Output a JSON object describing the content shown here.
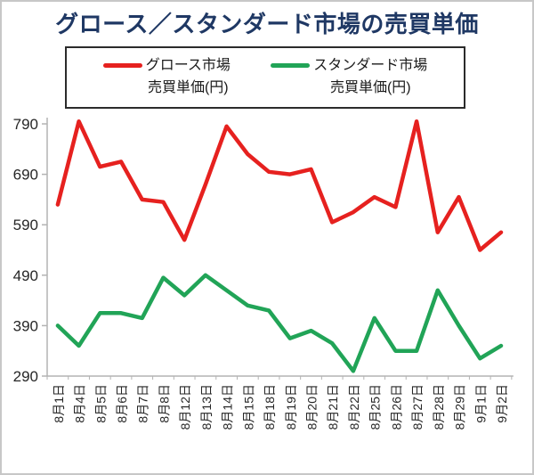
{
  "title": "グロース／スタンダード市場の売買単価",
  "legend": {
    "items": [
      {
        "line1": "グロース市場",
        "line2": "売買単価(円)",
        "color": "#e6211f"
      },
      {
        "line1": "スタンダード市場",
        "line2": "売買単価(円)",
        "color": "#21a457"
      }
    ]
  },
  "colors": {
    "title_navy": "#1f3864",
    "growth_red": "#e6211f",
    "standard_green": "#21a457",
    "axis_gray": "#b3b3b3",
    "label_text": "#262626",
    "frame_border": "#c7c7c7"
  },
  "chart_data": {
    "type": "line",
    "title": "グロース／スタンダード市場の売買単価",
    "categories": [
      "8月1日",
      "8月4日",
      "8月5日",
      "8月6日",
      "8月7日",
      "8月8日",
      "8月12日",
      "8月13日",
      "8月14日",
      "8月15日",
      "8月18日",
      "8月19日",
      "8月20日",
      "8月21日",
      "8月22日",
      "8月25日",
      "8月26日",
      "8月27日",
      "8月28日",
      "8月29日",
      "9月1日",
      "9月2日"
    ],
    "series": [
      {
        "name": "グロース市場 売買単価(円)",
        "color": "#e6211f",
        "values": [
          630,
          795,
          705,
          715,
          640,
          635,
          560,
          670,
          785,
          730,
          695,
          690,
          700,
          595,
          615,
          645,
          625,
          795,
          575,
          645,
          540,
          575
        ]
      },
      {
        "name": "スタンダード市場 売買単価(円)",
        "color": "#21a457",
        "values": [
          390,
          350,
          415,
          415,
          405,
          485,
          450,
          490,
          460,
          430,
          420,
          365,
          380,
          355,
          300,
          405,
          340,
          340,
          460,
          390,
          325,
          350
        ]
      }
    ],
    "xlabel": "",
    "ylabel": "",
    "ylim": [
      290,
      790
    ],
    "yticks": [
      290,
      390,
      490,
      590,
      690,
      790
    ],
    "grid": false,
    "legend_position": "top"
  }
}
